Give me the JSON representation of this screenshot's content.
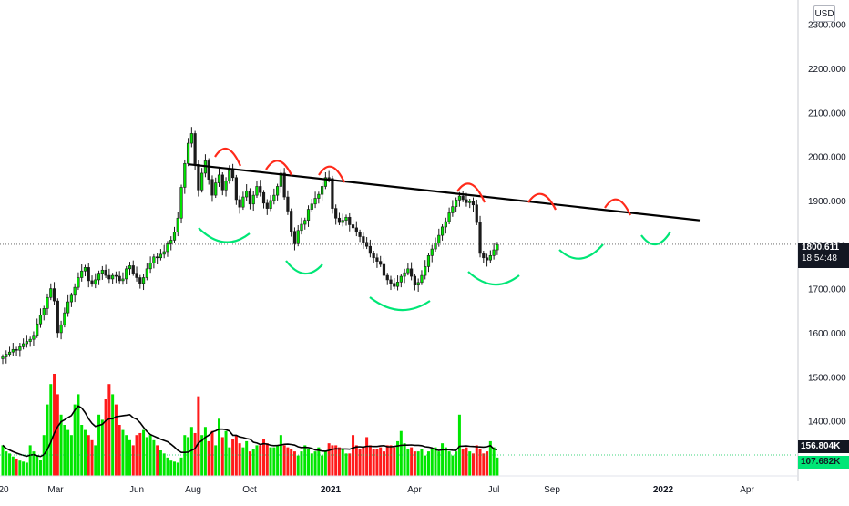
{
  "chart_data": {
    "type": "candlestick",
    "currency": "USD",
    "y_ticks": [
      "2300.000",
      "2200.000",
      "2100.000",
      "2000.000",
      "1900.000",
      "1800.000",
      "1700.000",
      "1600.000",
      "1500.000",
      "1400.000"
    ],
    "y_tick_values": [
      2300,
      2200,
      2100,
      2000,
      1900,
      1800,
      1700,
      1600,
      1500,
      1400
    ],
    "ylim": [
      1275,
      2355
    ],
    "x_ticks": [
      "20",
      "Mar",
      "Jun",
      "Aug",
      "Oct",
      "2021",
      "Apr",
      "Jul",
      "Sep",
      "2022",
      "Apr"
    ],
    "last_price": "1800.611",
    "countdown": "18:54:48",
    "volume_last_label": "156.804K",
    "volume_ma_label": "107.682K",
    "colors": {
      "up": "#00e600",
      "down": "#ff1a1a",
      "candle": "#1a1a1a",
      "resistance": "#ff2a1a",
      "support": "#00e676",
      "trendline": "#000000",
      "volume_ma": "#000000"
    },
    "closes": [
      1545,
      1551,
      1556,
      1562,
      1560,
      1568,
      1575,
      1580,
      1585,
      1594,
      1620,
      1640,
      1655,
      1680,
      1700,
      1672,
      1600,
      1618,
      1645,
      1670,
      1685,
      1703,
      1725,
      1740,
      1748,
      1718,
      1710,
      1720,
      1735,
      1742,
      1730,
      1722,
      1730,
      1728,
      1718,
      1722,
      1745,
      1752,
      1735,
      1725,
      1712,
      1725,
      1745,
      1758,
      1772,
      1770,
      1778,
      1784,
      1802,
      1810,
      1828,
      1860,
      1930,
      1984,
      2030,
      2052,
      1982,
      1924,
      1962,
      1990,
      1948,
      1912,
      1940,
      1958,
      1924,
      1944,
      1968,
      1952,
      1902,
      1885,
      1908,
      1922,
      1892,
      1912,
      1932,
      1918,
      1894,
      1882,
      1900,
      1912,
      1932,
      1962,
      1908,
      1876,
      1830,
      1802,
      1832,
      1846,
      1855,
      1880,
      1892,
      1905,
      1914,
      1932,
      1952,
      1950,
      1882,
      1860,
      1850,
      1855,
      1862,
      1845,
      1838,
      1828,
      1818,
      1805,
      1796,
      1780,
      1770,
      1762,
      1755,
      1730,
      1720,
      1712,
      1705,
      1715,
      1728,
      1736,
      1745,
      1728,
      1708,
      1714,
      1730,
      1750,
      1775,
      1790,
      1804,
      1821,
      1840,
      1852,
      1872,
      1886,
      1901,
      1910,
      1902,
      1895,
      1898,
      1890,
      1850,
      1780,
      1770,
      1765,
      1775,
      1788,
      1800
    ],
    "volumes": [
      30,
      24,
      22,
      19,
      17,
      15,
      14,
      13,
      30,
      24,
      20,
      16,
      40,
      70,
      90,
      100,
      80,
      60,
      50,
      45,
      40,
      70,
      80,
      50,
      45,
      40,
      35,
      30,
      60,
      55,
      75,
      90,
      80,
      70,
      50,
      45,
      40,
      35,
      30,
      40,
      42,
      45,
      38,
      40,
      35,
      30,
      25,
      22,
      18,
      15,
      14,
      13,
      18,
      40,
      38,
      48,
      42,
      78,
      40,
      48,
      34,
      44,
      30,
      56,
      38,
      44,
      28,
      36,
      40,
      32,
      28,
      34,
      24,
      26,
      30,
      30,
      36,
      32,
      28,
      28,
      30,
      40,
      30,
      28,
      26,
      24,
      20,
      24,
      30,
      26,
      22,
      24,
      28,
      20,
      24,
      32,
      30,
      30,
      28,
      26,
      22,
      22,
      40,
      30,
      26,
      28,
      38,
      30,
      26,
      26,
      28,
      24,
      30,
      30,
      28,
      34,
      44,
      32,
      26,
      28,
      24,
      24,
      26,
      20,
      24,
      26,
      28,
      24,
      32,
      28,
      24,
      20,
      24,
      60,
      26,
      28,
      24,
      22,
      30,
      26,
      22,
      24,
      34,
      28,
      18
    ],
    "trendline": {
      "start": 1982,
      "end": 1855
    },
    "projected_resistance_arcs": 3,
    "projected_support_arcs": 2
  }
}
